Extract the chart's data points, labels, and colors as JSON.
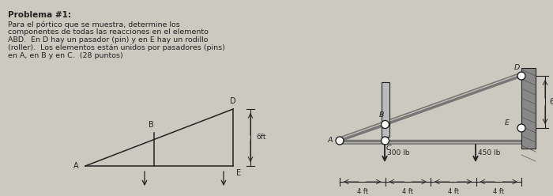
{
  "bg_color": "#ccc9c0",
  "text_color": "#111111",
  "title": "Problema #1:",
  "line1": "Para el pórtico que se muestra, determine los",
  "line2": "componentes de todas las reacciones en el elemento",
  "line3": "ABD.  En D hay un pasador (pin) y en E hay un rodillo",
  "line4": "(roller).  Los elementos están unidos por pasadores (pins)",
  "line5": "en A, en B y en C.  (28 puntos)",
  "six_ft": "6 ft",
  "f300": "300 lb",
  "f450": "450 lb",
  "dim_labels": [
    "4 ft",
    "4 ft",
    "4 ft",
    "4 ft"
  ],
  "beam_color": "#777777",
  "link_color": "#999999",
  "wall_color": "#888888",
  "dark": "#222222"
}
